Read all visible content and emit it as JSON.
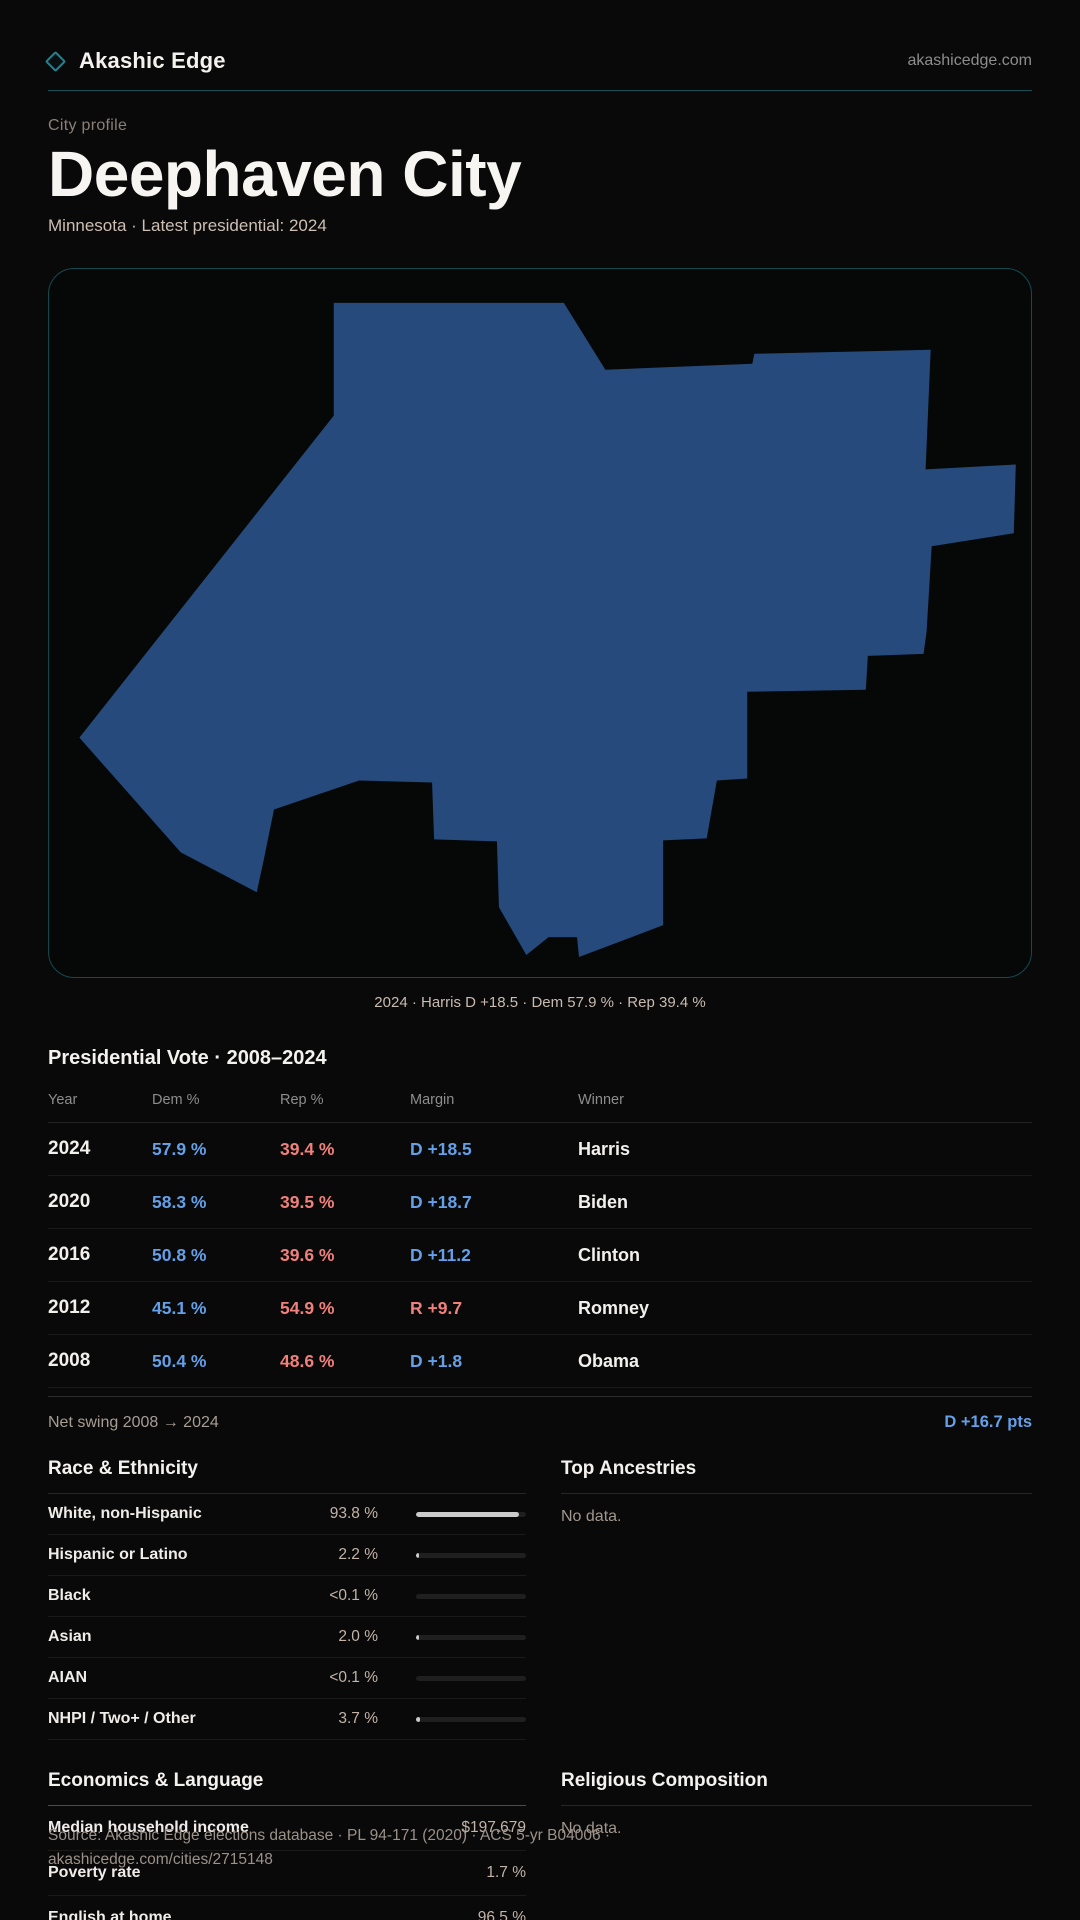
{
  "brand": {
    "name": "Akashic Edge",
    "domain": "akashicedge.com"
  },
  "page": {
    "eyebrow": "City profile",
    "title": "Deephaven City",
    "subtitle": "Minnesota · Latest presidential: 2024"
  },
  "map": {
    "caption": "2024 · Harris D +18.5 · Dem 57.9 % · Rep 39.4 %",
    "shape_fill": "#264a7b",
    "card_border": "#134a52"
  },
  "vote_table": {
    "title": "Presidential Vote · 2008–2024",
    "columns": [
      "Year",
      "Dem %",
      "Rep %",
      "Margin",
      "Winner"
    ],
    "rows": [
      {
        "year": "2024",
        "dem": "57.9 %",
        "rep": "39.4 %",
        "margin": "D +18.5",
        "winner": "Harris"
      },
      {
        "year": "2020",
        "dem": "58.3 %",
        "rep": "39.5 %",
        "margin": "D +18.7",
        "winner": "Biden"
      },
      {
        "year": "2016",
        "dem": "50.8 %",
        "rep": "39.6 %",
        "margin": "D +11.2",
        "winner": "Clinton"
      },
      {
        "year": "2012",
        "dem": "45.1 %",
        "rep": "54.9 %",
        "margin": "R +9.7",
        "winner": "Romney"
      },
      {
        "year": "2008",
        "dem": "50.4 %",
        "rep": "48.6 %",
        "margin": "D +1.8",
        "winner": "Obama"
      }
    ]
  },
  "net_swing": {
    "label": "Net swing 2008 → 2024",
    "value": "D +16.7 pts"
  },
  "race": {
    "title": "Race & Ethnicity",
    "rows": [
      {
        "label": "White, non-Hispanic",
        "value": "93.8 %",
        "pct": 93.8
      },
      {
        "label": "Hispanic or Latino",
        "value": "2.2 %",
        "pct": 2.2
      },
      {
        "label": "Black",
        "value": "<0.1 %",
        "pct": 0
      },
      {
        "label": "Asian",
        "value": "2.0 %",
        "pct": 2.0
      },
      {
        "label": "AIAN",
        "value": "<0.1 %",
        "pct": 0
      },
      {
        "label": "NHPI / Two+ / Other",
        "value": "3.7 %",
        "pct": 3.7
      }
    ]
  },
  "ancestries": {
    "title": "Top Ancestries",
    "empty": "No data."
  },
  "economics": {
    "title": "Economics & Language",
    "rows": [
      {
        "label": "Median household income",
        "value": "$197,679"
      },
      {
        "label": "Poverty rate",
        "value": "1.7 %"
      },
      {
        "label": "English at home",
        "value": "96.5 %"
      }
    ]
  },
  "religion": {
    "title": "Religious Composition",
    "empty": "No data."
  },
  "footer": {
    "source": "Source: Akashic Edge elections database · PL 94-171 (2020) · ACS 5-yr B04006 · akashicedge.com/cities/2715148"
  },
  "colors": {
    "dem_blue": "#64a0e8",
    "rep_red": "#f0807b",
    "accent_teal": "#1d5f66"
  }
}
